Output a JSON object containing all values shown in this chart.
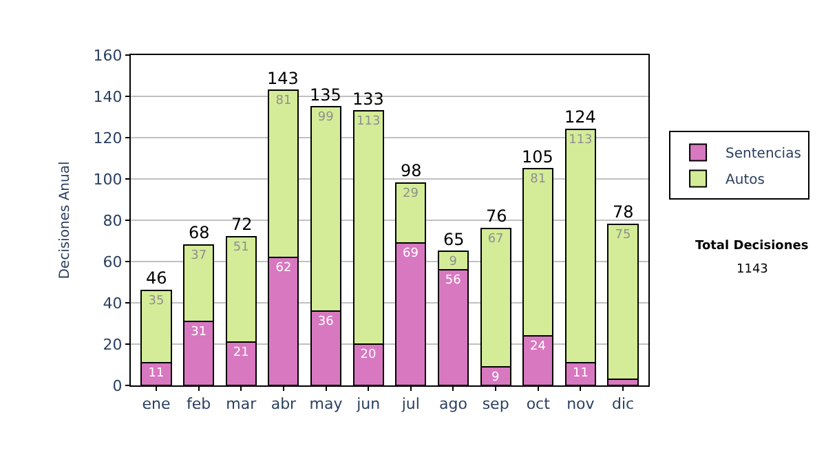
{
  "chart_data": {
    "type": "bar",
    "stacked": true,
    "ylabel": "Decisiones Anual",
    "categories": [
      "ene",
      "feb",
      "mar",
      "abr",
      "may",
      "jun",
      "jul",
      "ago",
      "sep",
      "oct",
      "nov",
      "dic"
    ],
    "series": [
      {
        "name": "Sentencias",
        "color": "#d878c0",
        "values": [
          11,
          31,
          21,
          62,
          36,
          20,
          69,
          56,
          9,
          24,
          11,
          3
        ],
        "value_labels": [
          "11",
          "31",
          "21",
          "62",
          "36",
          "20",
          "69",
          "56",
          "9",
          "24",
          "11",
          null
        ]
      },
      {
        "name": "Autos",
        "color": "#d4ec98",
        "values": [
          35,
          37,
          51,
          81,
          99,
          113,
          29,
          9,
          67,
          81,
          113,
          75
        ],
        "value_labels": [
          "35",
          "37",
          "51",
          "81",
          "99",
          "113",
          "29",
          "9",
          "67",
          "81",
          "113",
          "75"
        ]
      }
    ],
    "totals": [
      "46",
      "68",
      "72",
      "143",
      "135",
      "133",
      "98",
      "65",
      "76",
      "105",
      "124",
      "78"
    ],
    "ylim": [
      0,
      160
    ],
    "yticks": [
      0,
      20,
      40,
      60,
      80,
      100,
      120,
      140,
      160
    ],
    "grid": "y",
    "legend": "right",
    "annotations": [
      "Total Decisiones",
      "1143"
    ]
  }
}
